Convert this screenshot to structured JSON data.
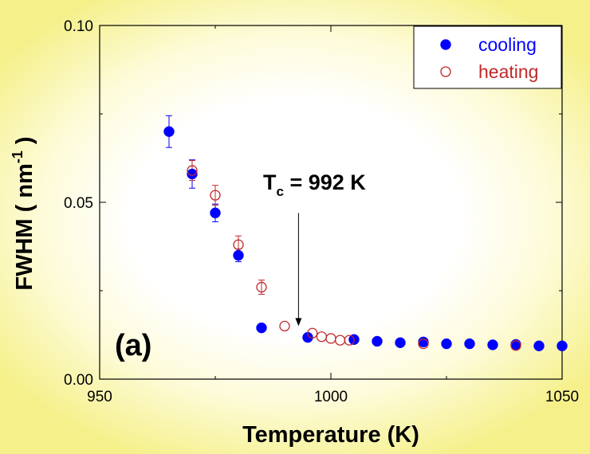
{
  "chart_data": {
    "type": "scatter",
    "xlabel": "Temperature  (K)",
    "ylabel_main": "FWHM  ( nm",
    "ylabel_sup": "-1",
    "ylabel_close": " )",
    "xlim": [
      950,
      1050
    ],
    "ylim": [
      0.0,
      0.1
    ],
    "x_ticks": [
      950,
      1000,
      1050
    ],
    "x_tick_labels": [
      "950",
      "1000",
      "1050"
    ],
    "y_ticks": [
      0.0,
      0.05,
      0.1
    ],
    "y_tick_labels": [
      "0.00",
      "0.05",
      "0.10"
    ],
    "grid": false,
    "legend_position": "top-right",
    "panel_label": "(a)",
    "annotation": {
      "text_main": "T",
      "text_sub": "c",
      "text_rest": " = 992 K",
      "arrow_x": 993,
      "arrow_y_top": 0.047,
      "arrow_y_bottom": 0.015
    },
    "series": [
      {
        "name": "cooling",
        "marker": "filled-circle",
        "color": "#0000ff",
        "points": [
          {
            "x": 965,
            "y": 0.07,
            "err": 0.0045
          },
          {
            "x": 970,
            "y": 0.058,
            "err": 0.004
          },
          {
            "x": 975,
            "y": 0.047,
            "err": 0.0025
          },
          {
            "x": 980,
            "y": 0.035,
            "err": 0.0018
          },
          {
            "x": 985,
            "y": 0.0145
          },
          {
            "x": 995,
            "y": 0.0118
          },
          {
            "x": 1005,
            "y": 0.0112
          },
          {
            "x": 1010,
            "y": 0.0107
          },
          {
            "x": 1015,
            "y": 0.0103
          },
          {
            "x": 1020,
            "y": 0.0105
          },
          {
            "x": 1025,
            "y": 0.01
          },
          {
            "x": 1030,
            "y": 0.01
          },
          {
            "x": 1035,
            "y": 0.0097
          },
          {
            "x": 1040,
            "y": 0.0098
          },
          {
            "x": 1045,
            "y": 0.0094
          },
          {
            "x": 1050,
            "y": 0.0094
          }
        ]
      },
      {
        "name": "heating",
        "marker": "open-circle",
        "color": "#c0282a",
        "points": [
          {
            "x": 970,
            "y": 0.059,
            "err": 0.0028
          },
          {
            "x": 975,
            "y": 0.052,
            "err": 0.0028
          },
          {
            "x": 980,
            "y": 0.038,
            "err": 0.0025
          },
          {
            "x": 985,
            "y": 0.026,
            "err": 0.002
          },
          {
            "x": 990,
            "y": 0.015
          },
          {
            "x": 996,
            "y": 0.013
          },
          {
            "x": 998,
            "y": 0.012
          },
          {
            "x": 1000,
            "y": 0.0115
          },
          {
            "x": 1002,
            "y": 0.011
          },
          {
            "x": 1004,
            "y": 0.011
          },
          {
            "x": 1020,
            "y": 0.01
          },
          {
            "x": 1040,
            "y": 0.0095
          }
        ]
      }
    ]
  }
}
